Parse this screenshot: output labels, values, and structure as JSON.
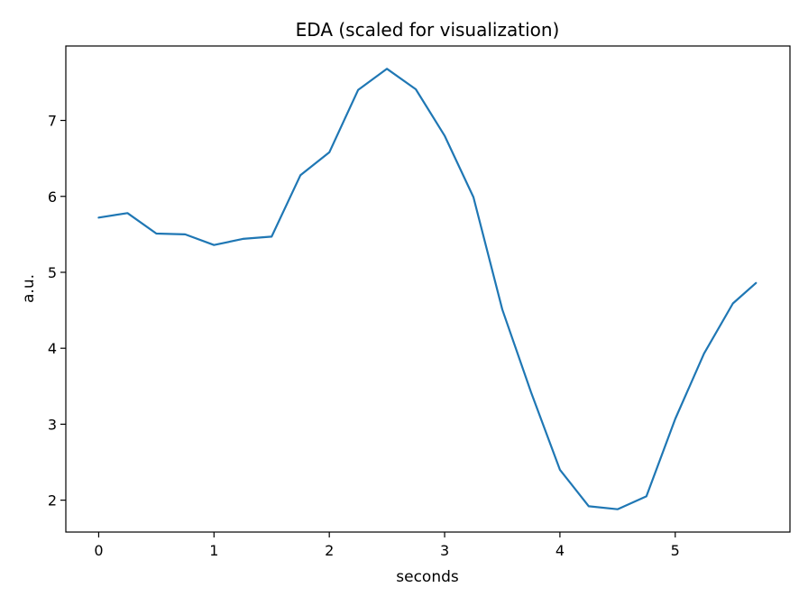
{
  "chart_data": {
    "type": "line",
    "title": "EDA (scaled for visualization)",
    "xlabel": "seconds",
    "ylabel": "a.u.",
    "xlim": [
      -0.285,
      5.995
    ],
    "ylim": [
      1.58,
      7.98
    ],
    "xticks": [
      0,
      1,
      2,
      3,
      4,
      5
    ],
    "yticks": [
      2,
      3,
      4,
      5,
      6,
      7
    ],
    "grid": false,
    "series": [
      {
        "color": "#1f77b4",
        "x": [
          0,
          0.25,
          0.5,
          0.75,
          1.0,
          1.25,
          1.5,
          1.75,
          2.0,
          2.25,
          2.5,
          2.75,
          3.0,
          3.25,
          3.5,
          3.75,
          4.0,
          4.25,
          4.5,
          4.75,
          5.0,
          5.25,
          5.5,
          5.7
        ],
        "y": [
          5.72,
          5.78,
          5.51,
          5.5,
          5.36,
          5.44,
          5.47,
          6.28,
          6.58,
          7.4,
          7.68,
          7.41,
          6.8,
          5.99,
          4.51,
          3.42,
          2.4,
          1.92,
          1.88,
          2.05,
          3.07,
          3.93,
          4.59,
          4.86
        ]
      }
    ]
  }
}
